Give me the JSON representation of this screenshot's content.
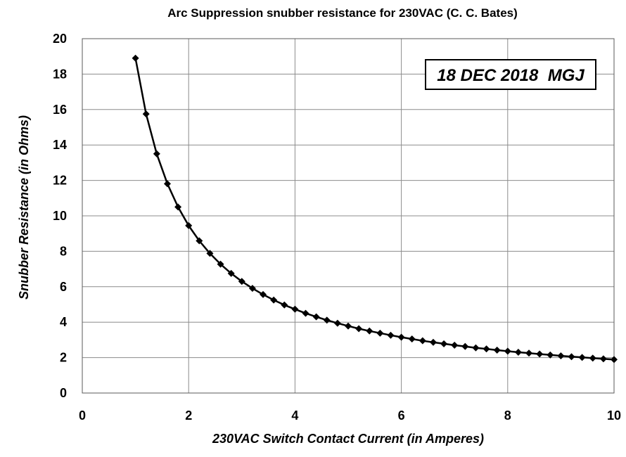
{
  "chart_data": {
    "type": "line",
    "title": "Arc Suppression snubber resistance for 230VAC (C. C. Bates)",
    "xlabel": "230VAC Switch Contact Current  (in Amperes)",
    "ylabel": "Snubber Resistance (in Ohms)",
    "xlim": [
      0,
      10
    ],
    "ylim": [
      0,
      20
    ],
    "x_ticks": [
      "0",
      "2",
      "4",
      "6",
      "8",
      "10"
    ],
    "y_ticks": [
      "0",
      "2",
      "4",
      "6",
      "8",
      "10",
      "12",
      "14",
      "16",
      "18",
      "20"
    ],
    "x_tick_values": [
      0,
      2,
      4,
      6,
      8,
      10
    ],
    "y_tick_values": [
      0,
      2,
      4,
      6,
      8,
      10,
      12,
      14,
      16,
      18,
      20
    ],
    "grid": true,
    "legend": false,
    "annotation": "18 DEC 2018  MGJ",
    "marker": "diamond",
    "line_color": "#000000",
    "series": [
      {
        "x": [
          1.0,
          1.2,
          1.4,
          1.6,
          1.8,
          2.0,
          2.2,
          2.4,
          2.6,
          2.8,
          3.0,
          3.2,
          3.4,
          3.6,
          3.8,
          4.0,
          4.2,
          4.4,
          4.6,
          4.8,
          5.0,
          5.2,
          5.4,
          5.6,
          5.8,
          6.0,
          6.2,
          6.4,
          6.6,
          6.8,
          7.0,
          7.2,
          7.4,
          7.6,
          7.8,
          8.0,
          8.2,
          8.4,
          8.6,
          8.8,
          9.0,
          9.2,
          9.4,
          9.6,
          9.8,
          10.0
        ],
        "y": [
          18.9,
          15.75,
          13.5,
          11.81,
          10.5,
          9.45,
          8.59,
          7.88,
          7.27,
          6.75,
          6.3,
          5.91,
          5.56,
          5.25,
          4.97,
          4.73,
          4.5,
          4.3,
          4.11,
          3.94,
          3.78,
          3.63,
          3.5,
          3.38,
          3.26,
          3.15,
          3.05,
          2.95,
          2.86,
          2.78,
          2.7,
          2.63,
          2.55,
          2.49,
          2.42,
          2.36,
          2.3,
          2.25,
          2.2,
          2.15,
          2.1,
          2.05,
          2.01,
          1.97,
          1.93,
          1.89
        ]
      }
    ]
  }
}
